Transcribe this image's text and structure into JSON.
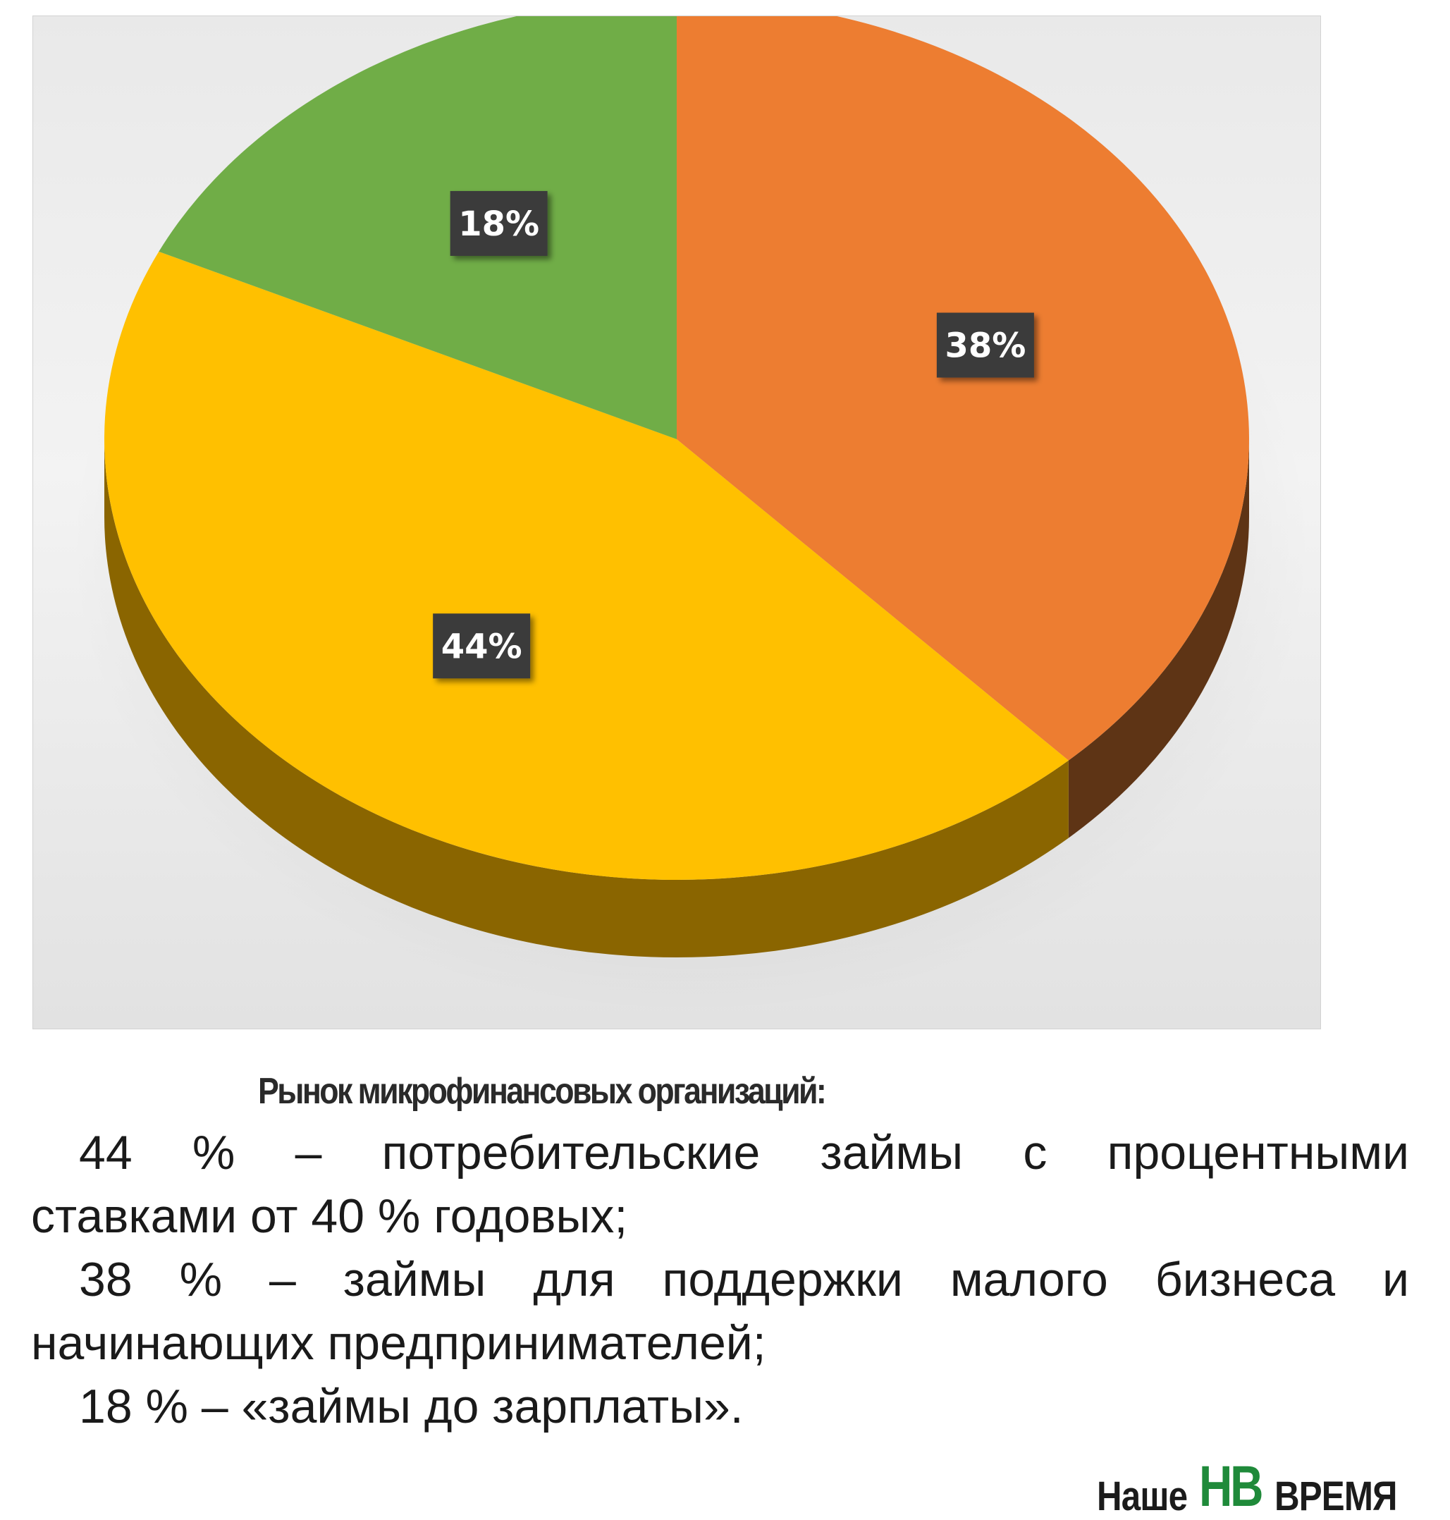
{
  "chart_data": {
    "type": "pie",
    "title": "",
    "slices": [
      {
        "label": "38%",
        "value": 38,
        "color": "#ed7d31",
        "side_color": "#5e3415"
      },
      {
        "label": "44%",
        "value": 44,
        "color": "#ffc000",
        "side_color": "#8a6500"
      },
      {
        "label": "18%",
        "value": 18,
        "color": "#70ad47",
        "side_color": "#3f6b27"
      }
    ],
    "start": "12 o'clock, clockwise",
    "style": "3d",
    "label_box_color": "#3a3a3a"
  },
  "caption": {
    "title": "Рынок микрофинансовых организаций:",
    "items": [
      {
        "first": "44 % – потребительские займы с процентными",
        "rest": "ставками от 40 % годовых;"
      },
      {
        "first": "38 % – займы для поддержки малого бизнеса и",
        "rest": "начинающих предпринимателей;"
      },
      {
        "first": "18 % – «займы до зарплаты».",
        "rest": ""
      }
    ]
  },
  "logo": {
    "left": "Наше",
    "mark": "НВ",
    "right": "ВРЕМЯ"
  }
}
